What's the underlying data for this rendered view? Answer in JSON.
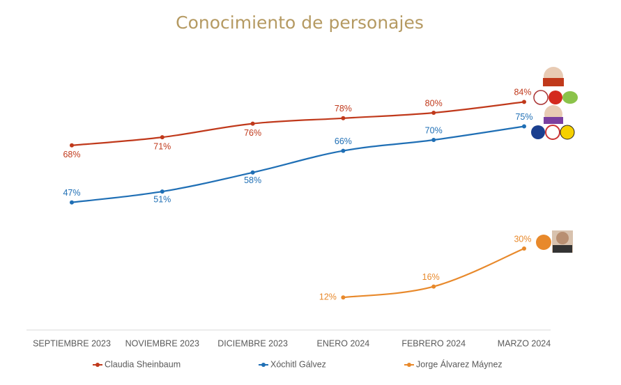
{
  "chart_data": {
    "type": "line",
    "title": "Conocimiento de personajes",
    "categories": [
      "SEPTIEMBRE 2023",
      "NOVIEMBRE 2023",
      "DICIEMBRE 2023",
      "ENERO 2024",
      "FEBRERO 2024",
      "MARZO 2024"
    ],
    "series": [
      {
        "name": "Claudia Sheinbaum",
        "color": "#c0391b",
        "values": [
          68,
          71,
          76,
          78,
          80,
          84
        ],
        "value_labels": [
          "68%",
          "71%",
          "76%",
          "78%",
          "80%",
          "84%"
        ]
      },
      {
        "name": "Xóchitl Gálvez",
        "color": "#1f6fb5",
        "values": [
          47,
          51,
          58,
          66,
          70,
          75
        ],
        "value_labels": [
          "47%",
          "51%",
          "58%",
          "66%",
          "70%",
          "75%"
        ]
      },
      {
        "name": "Jorge Álvarez Máynez",
        "color": "#e8892b",
        "values": [
          null,
          null,
          null,
          12,
          16,
          30
        ],
        "value_labels": [
          null,
          null,
          null,
          "12%",
          "16%",
          "30%"
        ]
      }
    ]
  }
}
